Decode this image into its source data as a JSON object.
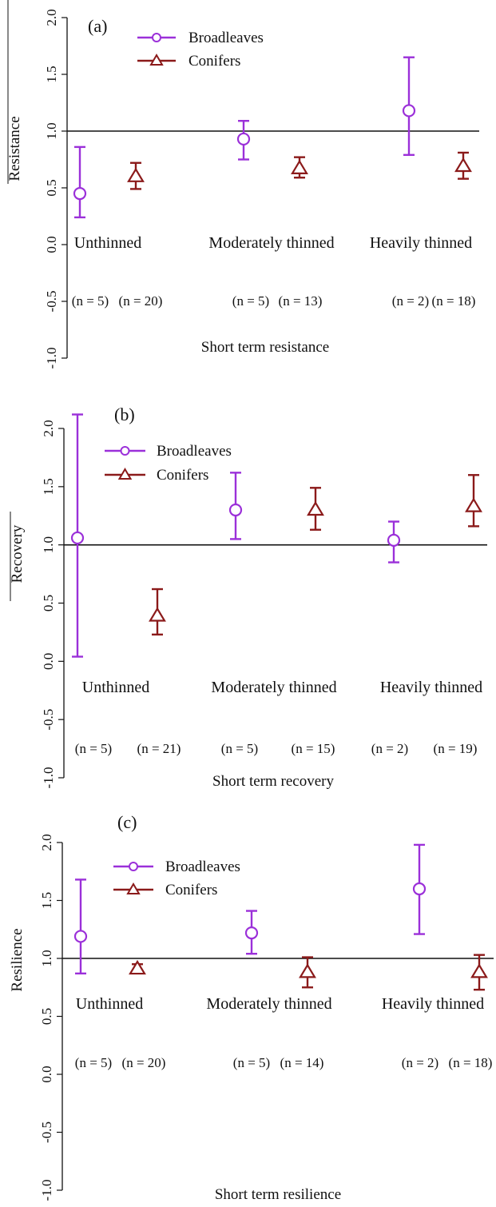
{
  "chart_data": [
    {
      "type": "scatter",
      "panel_label": "(a)",
      "ylabel": "Resistance",
      "xlabel": "Short term resistance",
      "ylim": [
        -1.0,
        2.0
      ],
      "yticks": [
        "-1.0",
        "-0.5",
        "0.0",
        "0.5",
        "1.0",
        "1.5",
        "2.0"
      ],
      "reference_line": 1.0,
      "categories": [
        "Unthinned",
        "Moderately thinned",
        "Heavily thinned"
      ],
      "series": [
        {
          "name": "Broadleaves",
          "color": "#9b30d9",
          "marker": "circle",
          "values": [
            0.45,
            0.93,
            1.18
          ],
          "lower": [
            0.24,
            0.75,
            0.79
          ],
          "upper": [
            0.86,
            1.09,
            1.65
          ],
          "n": [
            "(n = 5)",
            "(n = 5)",
            "(n = 2)"
          ]
        },
        {
          "name": "Conifers",
          "color": "#8b1a1a",
          "marker": "triangle",
          "values": [
            0.6,
            0.67,
            0.69
          ],
          "lower": [
            0.49,
            0.59,
            0.58
          ],
          "upper": [
            0.72,
            0.77,
            0.81
          ],
          "n": [
            "(n = 20)",
            "(n = 13)",
            "(n = 18)"
          ]
        }
      ]
    },
    {
      "type": "scatter",
      "panel_label": "(b)",
      "ylabel": "Recovery",
      "xlabel": "Short term recovery",
      "ylim": [
        -1.0,
        2.0
      ],
      "yticks": [
        "-1.0",
        "-0.5",
        "0.0",
        "0.5",
        "1.0",
        "1.5",
        "2.0"
      ],
      "reference_line": 1.0,
      "categories": [
        "Unthinned",
        "Moderately thinned",
        "Heavily thinned"
      ],
      "series": [
        {
          "name": "Broadleaves",
          "color": "#9b30d9",
          "marker": "circle",
          "values": [
            1.06,
            1.3,
            1.04
          ],
          "lower": [
            0.04,
            1.05,
            0.85
          ],
          "upper": [
            2.12,
            1.62,
            1.2
          ],
          "n": [
            "(n = 5)",
            "(n = 5)",
            "(n = 2)"
          ]
        },
        {
          "name": "Conifers",
          "color": "#8b1a1a",
          "marker": "triangle",
          "values": [
            0.39,
            1.3,
            1.33
          ],
          "lower": [
            0.23,
            1.13,
            1.16
          ],
          "upper": [
            0.62,
            1.49,
            1.6
          ],
          "n": [
            "(n = 21)",
            "(n = 15)",
            "(n = 19)"
          ]
        }
      ]
    },
    {
      "type": "scatter",
      "panel_label": "(c)",
      "ylabel": "Resilience",
      "xlabel": "Short term resilience",
      "ylim": [
        -1.0,
        2.0
      ],
      "yticks": [
        "-1.0",
        "-0.5",
        "0.0",
        "0.5",
        "1.0",
        "1.5",
        "2.0"
      ],
      "reference_line": 1.0,
      "categories": [
        "Unthinned",
        "Moderately thinned",
        "Heavily thinned"
      ],
      "series": [
        {
          "name": "Broadleaves",
          "color": "#9b30d9",
          "marker": "circle",
          "values": [
            1.19,
            1.22,
            1.6
          ],
          "lower": [
            0.87,
            1.04,
            1.21
          ],
          "upper": [
            1.68,
            1.41,
            1.98
          ],
          "n": [
            "(n = 5)",
            "(n = 5)",
            "(n = 2)"
          ]
        },
        {
          "name": "Conifers",
          "color": "#8b1a1a",
          "marker": "triangle",
          "values": [
            0.91,
            0.88,
            0.88
          ],
          "lower": [
            0.88,
            0.75,
            0.73
          ],
          "upper": [
            0.95,
            1.01,
            1.03
          ],
          "n": [
            "(n = 20)",
            "(n = 14)",
            "(n = 18)"
          ]
        }
      ]
    }
  ]
}
